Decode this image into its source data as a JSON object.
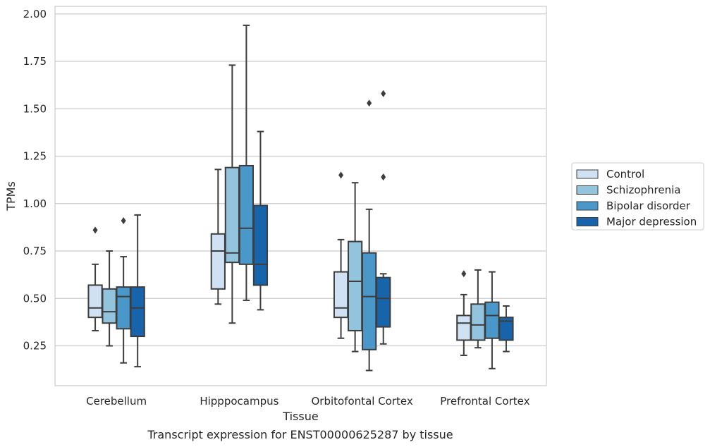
{
  "caption": "Transcript expression for ENST00000625287 by tissue",
  "chart_data": {
    "type": "box",
    "xlabel": "Tissue",
    "ylabel": "TPMs",
    "ylim": [
      0.04,
      2.04
    ],
    "yticks": [
      "0.25",
      "0.50",
      "0.75",
      "1.00",
      "1.25",
      "1.50",
      "1.75",
      "2.00"
    ],
    "grid": "horizontal",
    "legend_position": "right",
    "categories": [
      "Cerebellum",
      "Hipppocampus",
      "Orbitofontal Cortex",
      "Prefrontal Cortex"
    ],
    "series": [
      {
        "name": "Control",
        "color": "#cfe1f2",
        "boxes": [
          {
            "whisker_low": 0.33,
            "q1": 0.4,
            "median": 0.45,
            "q3": 0.57,
            "whisker_high": 0.68,
            "outliers": [
              0.86
            ]
          },
          {
            "whisker_low": 0.47,
            "q1": 0.55,
            "median": 0.75,
            "q3": 0.84,
            "whisker_high": 1.18,
            "outliers": []
          },
          {
            "whisker_low": 0.29,
            "q1": 0.4,
            "median": 0.45,
            "q3": 0.64,
            "whisker_high": 0.81,
            "outliers": [
              1.15
            ]
          },
          {
            "whisker_low": 0.2,
            "q1": 0.28,
            "median": 0.37,
            "q3": 0.41,
            "whisker_high": 0.52,
            "outliers": [
              0.63
            ]
          }
        ]
      },
      {
        "name": "Schizophrenia",
        "color": "#93c4de",
        "boxes": [
          {
            "whisker_low": 0.25,
            "q1": 0.37,
            "median": 0.43,
            "q3": 0.55,
            "whisker_high": 0.75,
            "outliers": []
          },
          {
            "whisker_low": 0.37,
            "q1": 0.69,
            "median": 0.74,
            "q3": 1.19,
            "whisker_high": 1.73,
            "outliers": []
          },
          {
            "whisker_low": 0.22,
            "q1": 0.33,
            "median": 0.59,
            "q3": 0.8,
            "whisker_high": 1.11,
            "outliers": []
          },
          {
            "whisker_low": 0.24,
            "q1": 0.28,
            "median": 0.36,
            "q3": 0.47,
            "whisker_high": 0.65,
            "outliers": []
          }
        ]
      },
      {
        "name": "Bipolar disorder",
        "color": "#4a98c9",
        "boxes": [
          {
            "whisker_low": 0.16,
            "q1": 0.34,
            "median": 0.51,
            "q3": 0.56,
            "whisker_high": 0.72,
            "outliers": [
              0.91
            ]
          },
          {
            "whisker_low": 0.49,
            "q1": 0.68,
            "median": 0.87,
            "q3": 1.2,
            "whisker_high": 1.94,
            "outliers": []
          },
          {
            "whisker_low": 0.12,
            "q1": 0.23,
            "median": 0.51,
            "q3": 0.74,
            "whisker_high": 0.97,
            "outliers": [
              1.53
            ]
          },
          {
            "whisker_low": 0.13,
            "q1": 0.29,
            "median": 0.41,
            "q3": 0.48,
            "whisker_high": 0.64,
            "outliers": []
          }
        ]
      },
      {
        "name": "Major depression",
        "color": "#1764ab",
        "boxes": [
          {
            "whisker_low": 0.14,
            "q1": 0.3,
            "median": 0.45,
            "q3": 0.56,
            "whisker_high": 0.94,
            "outliers": []
          },
          {
            "whisker_low": 0.44,
            "q1": 0.57,
            "median": 0.68,
            "q3": 0.99,
            "whisker_high": 1.38,
            "outliers": []
          },
          {
            "whisker_low": 0.26,
            "q1": 0.35,
            "median": 0.5,
            "q3": 0.61,
            "whisker_high": 0.63,
            "outliers": [
              1.14,
              1.58
            ]
          },
          {
            "whisker_low": 0.22,
            "q1": 0.28,
            "median": 0.38,
            "q3": 0.4,
            "whisker_high": 0.46,
            "outliers": []
          }
        ]
      }
    ]
  }
}
